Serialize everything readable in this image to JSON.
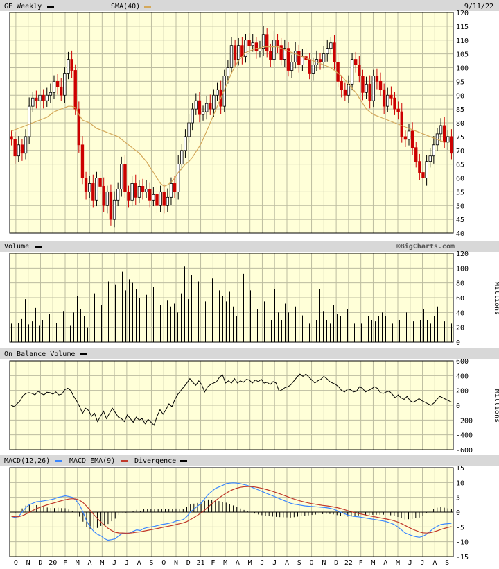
{
  "header": {
    "title": "GE Weekly",
    "sma_label": "SMA(40)",
    "date": "9/11/22",
    "copyright": "©BigCharts.com"
  },
  "colors": {
    "panel_bg": "#ffffd8",
    "grid": "#bcbca0",
    "candle_up": "#000000",
    "candle_down": "#cc0000",
    "sma": "#d4a85a",
    "macd": "#3a86ff",
    "macd_ema": "#c0392b",
    "header_band": "#d8d8d8"
  },
  "x_axis": {
    "labels": [
      "O",
      "N",
      "D",
      "20",
      "F",
      "M",
      "A",
      "M",
      "J",
      "J",
      "A",
      "S",
      "O",
      "N",
      "D",
      "21",
      "F",
      "M",
      "A",
      "M",
      "J",
      "J",
      "A",
      "S",
      "O",
      "N",
      "D",
      "22",
      "F",
      "M",
      "A",
      "M",
      "J",
      "J",
      "A",
      "S"
    ]
  },
  "chart_data": [
    {
      "type": "candlestick",
      "title": "GE Weekly",
      "series_names": [
        "GE",
        "SMA(40)"
      ],
      "ylim": [
        40,
        120
      ],
      "yticks": [
        40,
        45,
        50,
        55,
        60,
        65,
        70,
        75,
        80,
        85,
        90,
        95,
        100,
        105,
        110,
        115,
        120
      ],
      "close": [
        74,
        68,
        72,
        69,
        75,
        86,
        89,
        88,
        90,
        88,
        90,
        91,
        95,
        93,
        90,
        98,
        103,
        99,
        85,
        72,
        60,
        55,
        58,
        52,
        60,
        57,
        50,
        55,
        45,
        52,
        56,
        65,
        55,
        52,
        58,
        53,
        57,
        55,
        56,
        52,
        54,
        50,
        55,
        50,
        53,
        58,
        55,
        65,
        70,
        75,
        80,
        85,
        88,
        83,
        84,
        87,
        85,
        90,
        92,
        86,
        97,
        100,
        108,
        103,
        108,
        104,
        110,
        108,
        109,
        106,
        107,
        112,
        106,
        103,
        110,
        108,
        103,
        107,
        99,
        102,
        106,
        101,
        104,
        103,
        98,
        101,
        103,
        102,
        105,
        107,
        109,
        102,
        95,
        92,
        90,
        94,
        103,
        101,
        97,
        91,
        94,
        88,
        97,
        95,
        92,
        86,
        90,
        89,
        85,
        84,
        75,
        74,
        77,
        71,
        66,
        62,
        60,
        66,
        68,
        72,
        76,
        79,
        73,
        75,
        69
      ],
      "sma": [
        77,
        77.5,
        78,
        78.5,
        79,
        79.5,
        80,
        80.5,
        81,
        81.5,
        82,
        83,
        84,
        84.5,
        85,
        85.5,
        86,
        86,
        85.5,
        83,
        81,
        80.5,
        80,
        79,
        78,
        77.5,
        77,
        76.5,
        76,
        75.5,
        75,
        74,
        73,
        72,
        71,
        70,
        69,
        67.5,
        66,
        64,
        62,
        60,
        58,
        57,
        57.5,
        58.5,
        60,
        62,
        63.5,
        65,
        66,
        67.5,
        69.5,
        71.5,
        74,
        77,
        80,
        83,
        86,
        89,
        92,
        95,
        98,
        100.5,
        102.5,
        104,
        105.5,
        106,
        106.5,
        107,
        107,
        107.5,
        107.5,
        107.5,
        107.5,
        107.5,
        107,
        106.5,
        106,
        105.5,
        105,
        104.5,
        104,
        103.5,
        103,
        102.5,
        102,
        101.5,
        101,
        100.5,
        100,
        99,
        98,
        97,
        95.5,
        94,
        92.5,
        91,
        89,
        87,
        85,
        84,
        83,
        82.5,
        82,
        81.5,
        81,
        80.5,
        80,
        79.5,
        79,
        78.5,
        78,
        77.5,
        77,
        76.5,
        76,
        75.5,
        75,
        74.5,
        74,
        73.5,
        73
      ]
    },
    {
      "type": "bar",
      "title": "Volume",
      "ylabel": "Millions",
      "ylim": [
        0,
        120
      ],
      "yticks": [
        0,
        20,
        40,
        60,
        80,
        100,
        120
      ],
      "values": [
        25,
        30,
        26,
        32,
        58,
        24,
        28,
        46,
        22,
        30,
        24,
        38,
        40,
        26,
        35,
        42,
        20,
        22,
        40,
        62,
        45,
        35,
        20,
        88,
        66,
        78,
        50,
        58,
        82,
        60,
        78,
        80,
        95,
        70,
        85,
        80,
        72,
        60,
        70,
        64,
        60,
        75,
        72,
        50,
        62,
        56,
        48,
        52,
        40,
        66,
        102,
        58,
        90,
        72,
        82,
        64,
        55,
        62,
        86,
        80,
        70,
        62,
        55,
        68,
        48,
        35,
        60,
        92,
        40,
        70,
        112,
        45,
        32,
        55,
        62,
        30,
        72,
        40,
        30,
        52,
        40,
        35,
        48,
        28,
        36,
        40,
        25,
        45,
        30,
        72,
        42,
        30,
        25,
        50,
        38,
        35,
        28,
        45,
        30,
        25,
        32,
        25,
        58,
        35,
        30,
        28,
        35,
        40,
        35,
        32,
        25,
        68,
        30,
        28,
        40,
        35,
        28,
        33,
        30,
        45,
        30,
        25,
        35,
        48,
        25,
        28,
        30,
        25
      ]
    },
    {
      "type": "line",
      "title": "On Balance Volume",
      "ylabel": "Millions",
      "ylim": [
        -600,
        600
      ],
      "yticks": [
        -600,
        -400,
        -200,
        0,
        200,
        400,
        600
      ],
      "values": [
        0,
        -20,
        20,
        60,
        130,
        160,
        170,
        160,
        140,
        190,
        160,
        140,
        175,
        170,
        150,
        180,
        140,
        150,
        210,
        230,
        200,
        120,
        60,
        -20,
        -110,
        -40,
        -70,
        -150,
        -110,
        -220,
        -150,
        -80,
        -180,
        -110,
        -40,
        -100,
        -160,
        -180,
        -220,
        -130,
        -180,
        -230,
        -160,
        -200,
        -180,
        -250,
        -190,
        -230,
        -270,
        -150,
        -60,
        -120,
        -60,
        20,
        -20,
        80,
        150,
        200,
        250,
        300,
        360,
        310,
        270,
        330,
        280,
        180,
        250,
        280,
        300,
        320,
        380,
        410,
        300,
        330,
        300,
        360,
        300,
        330,
        310,
        350,
        340,
        300,
        340,
        320,
        350,
        300,
        310,
        280,
        320,
        300,
        190,
        210,
        240,
        250,
        280,
        330,
        380,
        420,
        390,
        420,
        380,
        340,
        300,
        330,
        350,
        390,
        360,
        320,
        300,
        280,
        250,
        200,
        180,
        220,
        210,
        180,
        190,
        250,
        230,
        180,
        200,
        220,
        250,
        230,
        170,
        160,
        180,
        190,
        150,
        100,
        140,
        100,
        80,
        120,
        60,
        40,
        60,
        90,
        60,
        40,
        20,
        0,
        30,
        80,
        120,
        100,
        80,
        60,
        40
      ]
    },
    {
      "type": "line",
      "title": "MACD(12,26)",
      "series_names": [
        "MACD(12,26)",
        "MACD EMA(9)",
        "Divergence"
      ],
      "ylim": [
        -15,
        15
      ],
      "yticks": [
        -15,
        -10,
        -5,
        0,
        5,
        10,
        15
      ],
      "macd": [
        -1.5,
        -1.8,
        -1.5,
        0,
        1.5,
        2.5,
        3,
        3.5,
        3.6,
        3.8,
        4,
        4.2,
        4.5,
        5,
        5.2,
        5.5,
        5.3,
        5,
        4,
        2.5,
        0,
        -3,
        -5,
        -6.5,
        -7.5,
        -8,
        -9,
        -9.5,
        -9.3,
        -9,
        -8,
        -7.2,
        -7.3,
        -7,
        -6.5,
        -6,
        -6.2,
        -5.5,
        -5.2,
        -5,
        -4.8,
        -4.5,
        -4.2,
        -4,
        -3.8,
        -3.5,
        -3,
        -2.8,
        -2.5,
        -1.5,
        0,
        1,
        2,
        3,
        4.5,
        6,
        7,
        8,
        8.5,
        9,
        9.6,
        9.8,
        9.9,
        9.8,
        9.6,
        9.3,
        9,
        8.5,
        8,
        7.5,
        7,
        6.5,
        6,
        5.5,
        5,
        4.5,
        4,
        3.5,
        3,
        2.7,
        2.5,
        2.3,
        2.1,
        2,
        1.9,
        1.8,
        1.7,
        1.6,
        1.5,
        1.3,
        1,
        0.5,
        0,
        -0.5,
        -1,
        -1.3,
        -1.5,
        -1.6,
        -1.8,
        -2,
        -2.2,
        -2.4,
        -2.6,
        -2.8,
        -3,
        -3.3,
        -3.7,
        -4.2,
        -5,
        -6,
        -7,
        -7.5,
        -8,
        -8.3,
        -8.5,
        -8.2,
        -7.5,
        -6.5,
        -5.5,
        -4.8,
        -4.2,
        -4,
        -3.9,
        -3.8
      ]
    }
  ]
}
